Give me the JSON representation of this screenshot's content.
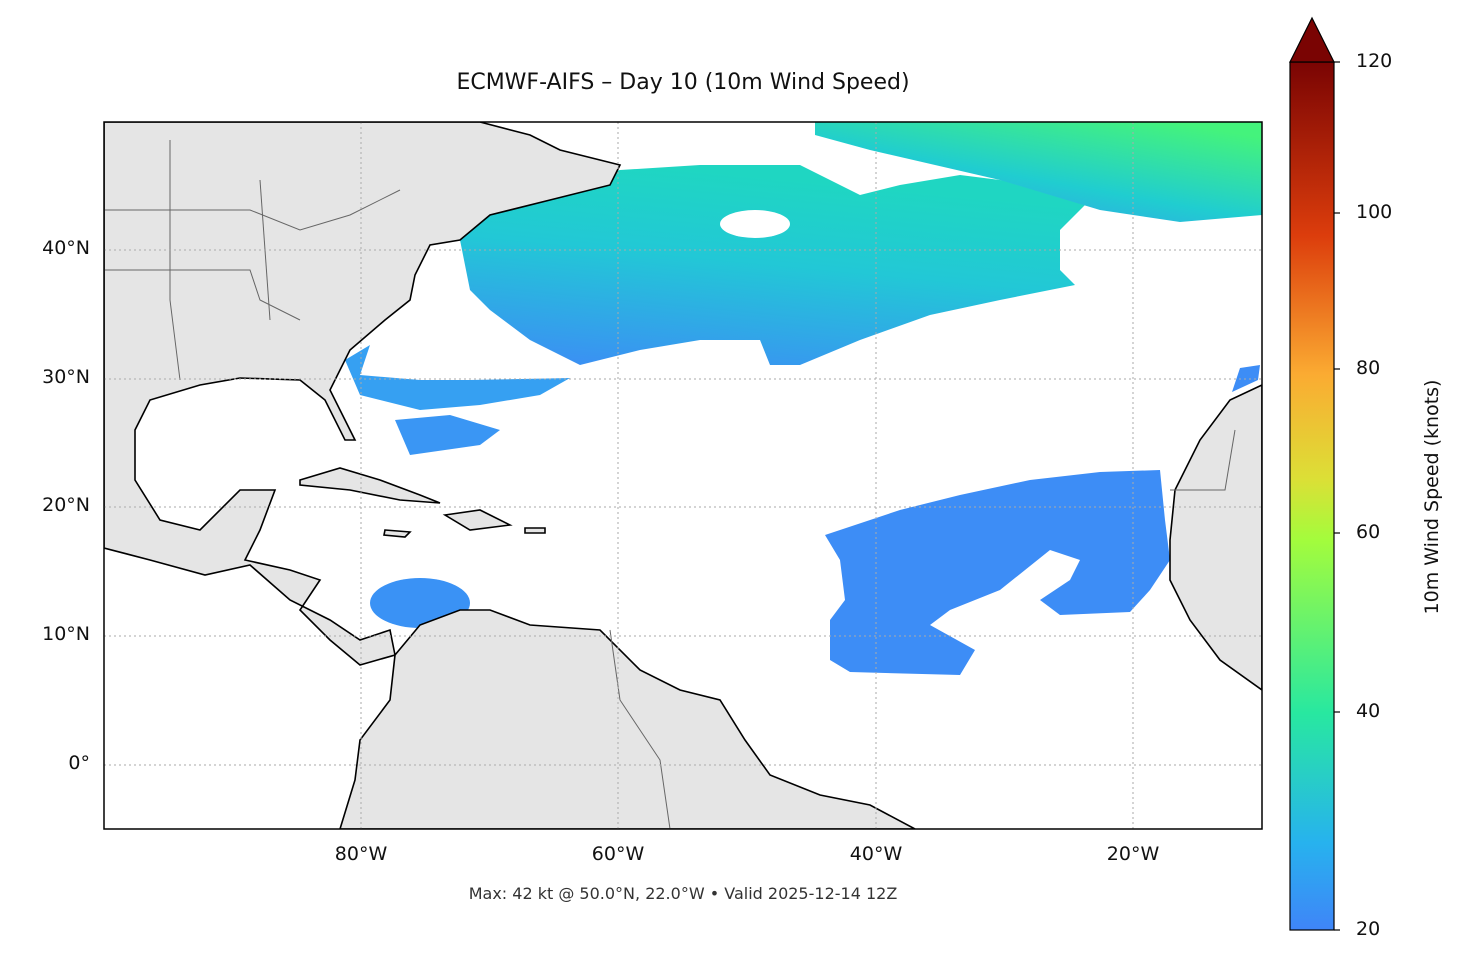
{
  "title": "ECMWF-AIFS – Day 10 (10m Wind Speed)",
  "footer": "Max: 42 kt @ 50.0°N, 22.0°W • Valid 2025-12-14 12Z",
  "map": {
    "extent_lon": [
      -100,
      -10
    ],
    "extent_lat": [
      -5,
      50
    ],
    "land_color": "#e5e5e5",
    "ocean_color": "#ffffff",
    "gridlines": "dotted",
    "lat_labels": [
      "0°",
      "10°N",
      "20°N",
      "30°N",
      "40°N"
    ],
    "lon_labels": [
      "80°W",
      "60°W",
      "40°W",
      "20°W"
    ]
  },
  "colorbar": {
    "label": "10m Wind Speed (knots)",
    "colormap": "turbo",
    "range": [
      20,
      120
    ],
    "extend": "max",
    "ticks": [
      "20",
      "40",
      "60",
      "80",
      "100",
      "120"
    ]
  },
  "max_wind": {
    "value_kt": 42,
    "lat": 50.0,
    "lon": -22.0
  }
}
